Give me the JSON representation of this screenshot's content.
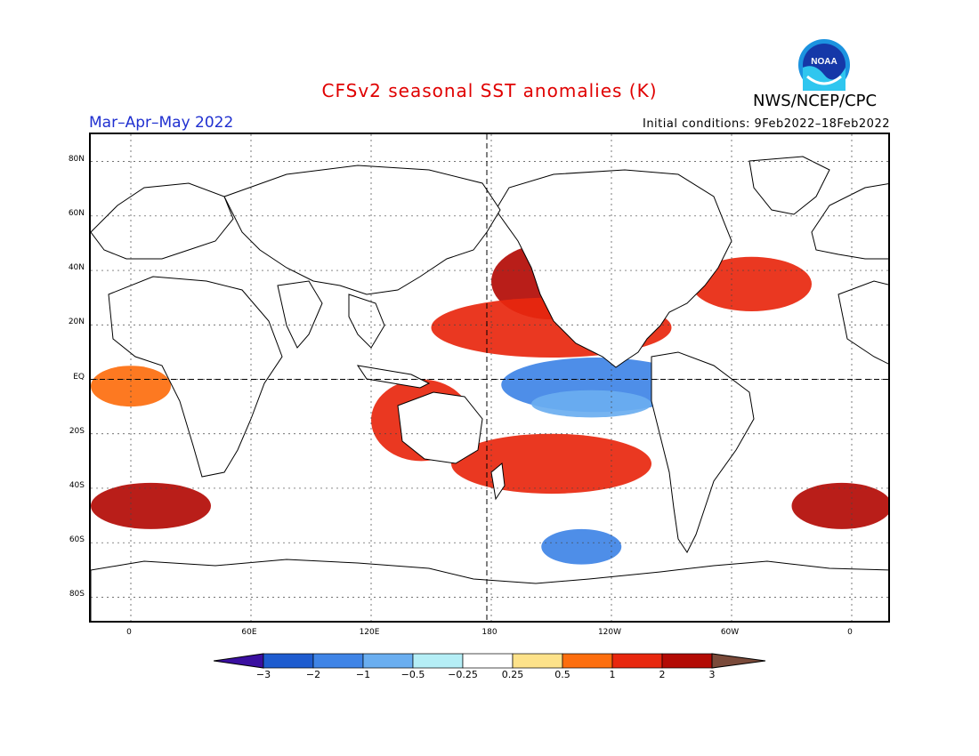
{
  "header": {
    "title": "CFSv2 seasonal SST anomalies (K)",
    "agency": "NWS/NCEP/CPC",
    "logo_text": "NOAA",
    "period": "Mar–Apr–May 2022",
    "initial_conditions": "Initial conditions: 9Feb2022–18Feb2022"
  },
  "map": {
    "projection": "equirectangular",
    "lon_range": [
      -20,
      380
    ],
    "lat_range": [
      -90,
      90
    ],
    "lat_ticks": [
      "80N",
      "60N",
      "40N",
      "20N",
      "EQ",
      "20S",
      "40S",
      "60S",
      "80S"
    ],
    "lon_ticks": [
      "0",
      "60E",
      "120E",
      "180",
      "120W",
      "60W",
      "0"
    ],
    "grid": "dotted",
    "dashed_lines": [
      "equator",
      "dateline"
    ]
  },
  "colorbar": {
    "labels": [
      "-3",
      "-2",
      "-1",
      "-0.5",
      "-0.25",
      "0.25",
      "0.5",
      "1",
      "2",
      "3"
    ],
    "colors": [
      "#3a0fa0",
      "#1e5ccf",
      "#3f84e6",
      "#6aaef0",
      "#b5eef6",
      "#ffffff",
      "#fde28a",
      "#fd6e0e",
      "#e8270e",
      "#b30b05",
      "#7a4a3a"
    ],
    "units": "K"
  },
  "chart_data": {
    "type": "heatmap",
    "title": "CFSv2 seasonal SST anomalies (K)",
    "subtitle": "Mar–Apr–May 2022",
    "xlabel": "",
    "ylabel": "",
    "grid": true,
    "regions": [
      {
        "lon": [
          180,
          240
        ],
        "lat": [
          22,
          50
        ],
        "level": 2
      },
      {
        "lon": [
          150,
          270
        ],
        "lat": [
          8,
          30
        ],
        "level": 1
      },
      {
        "lon": [
          185,
          280
        ],
        "lat": [
          -12,
          8
        ],
        "level": -1
      },
      {
        "lon": [
          200,
          260
        ],
        "lat": [
          -14,
          -4
        ],
        "level": -0.5
      },
      {
        "lon": [
          120,
          170
        ],
        "lat": [
          -30,
          0
        ],
        "level": 1
      },
      {
        "lon": [
          160,
          260
        ],
        "lat": [
          -42,
          -20
        ],
        "level": 1
      },
      {
        "lon": [
          -20,
          40
        ],
        "lat": [
          -55,
          -38
        ],
        "level": 2
      },
      {
        "lon": [
          330,
          380
        ],
        "lat": [
          -55,
          -38
        ],
        "level": 2
      },
      {
        "lon": [
          280,
          340
        ],
        "lat": [
          25,
          45
        ],
        "level": 1
      },
      {
        "lon": [
          205,
          245
        ],
        "lat": [
          -68,
          -55
        ],
        "level": -1
      },
      {
        "lon": [
          -20,
          20
        ],
        "lat": [
          -10,
          5
        ],
        "level": 0.5
      }
    ]
  }
}
